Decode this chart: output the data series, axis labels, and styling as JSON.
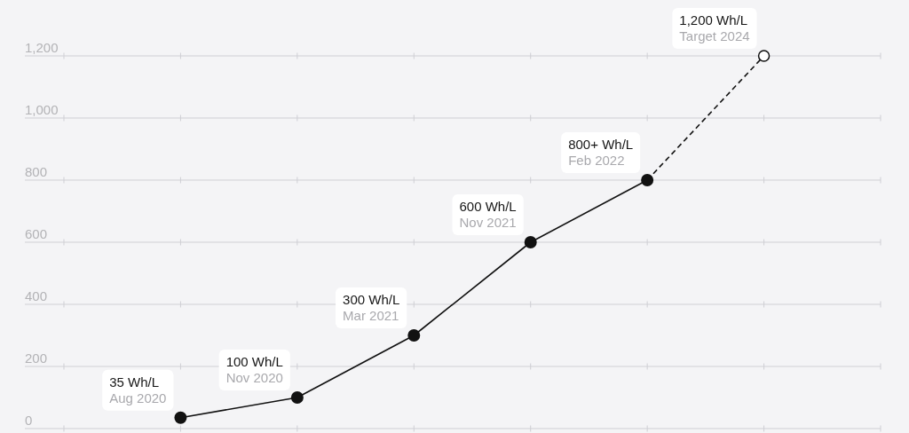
{
  "chart_data": {
    "type": "line",
    "categories": [
      null,
      "Aug 2020",
      "Nov 2020",
      "Mar 2021",
      "Nov 2021",
      "Feb 2022",
      "Target 2024",
      null
    ],
    "series": [
      {
        "color": "#111111",
        "line_style": "solid",
        "values": [
          null,
          35,
          100,
          300,
          600,
          800,
          null,
          null
        ],
        "value_labels": [
          null,
          "35 Wh/L",
          "100 Wh/L",
          "300 Wh/L",
          "600 Wh/L",
          "800+ Wh/L",
          null,
          null
        ]
      },
      {
        "color": "#111111",
        "line_style": "dashed",
        "values": [
          null,
          null,
          null,
          null,
          null,
          800,
          1200,
          null
        ],
        "value_labels": [
          null,
          null,
          null,
          null,
          null,
          null,
          "1,200 Wh/L",
          null
        ]
      }
    ],
    "ylim": [
      0,
      1380
    ],
    "yticks": [
      0,
      200,
      400,
      600,
      800,
      {
        "value": 1000,
        "label": "1,000"
      },
      {
        "value": 1200,
        "label": "1,200"
      }
    ],
    "grid": "y",
    "marker": "circle",
    "tick_labels": "y"
  }
}
